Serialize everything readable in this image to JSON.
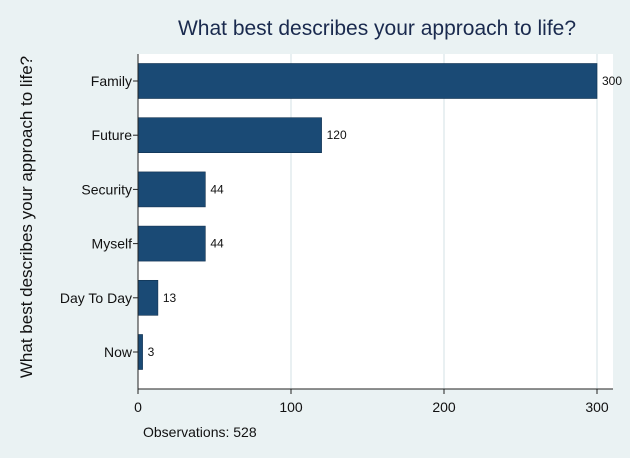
{
  "chart_data": {
    "type": "bar",
    "orientation": "horizontal",
    "title": "What best describes your approach to life?",
    "ylabel": "What best describes your approach to life?",
    "xlabel": "",
    "categories": [
      "Family",
      "Future",
      "Security",
      "Myself",
      "Day To Day",
      "Now"
    ],
    "values": [
      300,
      120,
      44,
      44,
      13,
      3
    ],
    "xlim": [
      0,
      313
    ],
    "xticks": [
      0,
      100,
      200,
      300
    ],
    "grid": "vertical",
    "legend": "none",
    "note": "Observations: 528",
    "colors": {
      "bar": "#1a4a75",
      "background": "#eaf2f3",
      "plot_background": "#ffffff",
      "grid": "#e2ecee",
      "title": "#1a2a4e"
    }
  }
}
